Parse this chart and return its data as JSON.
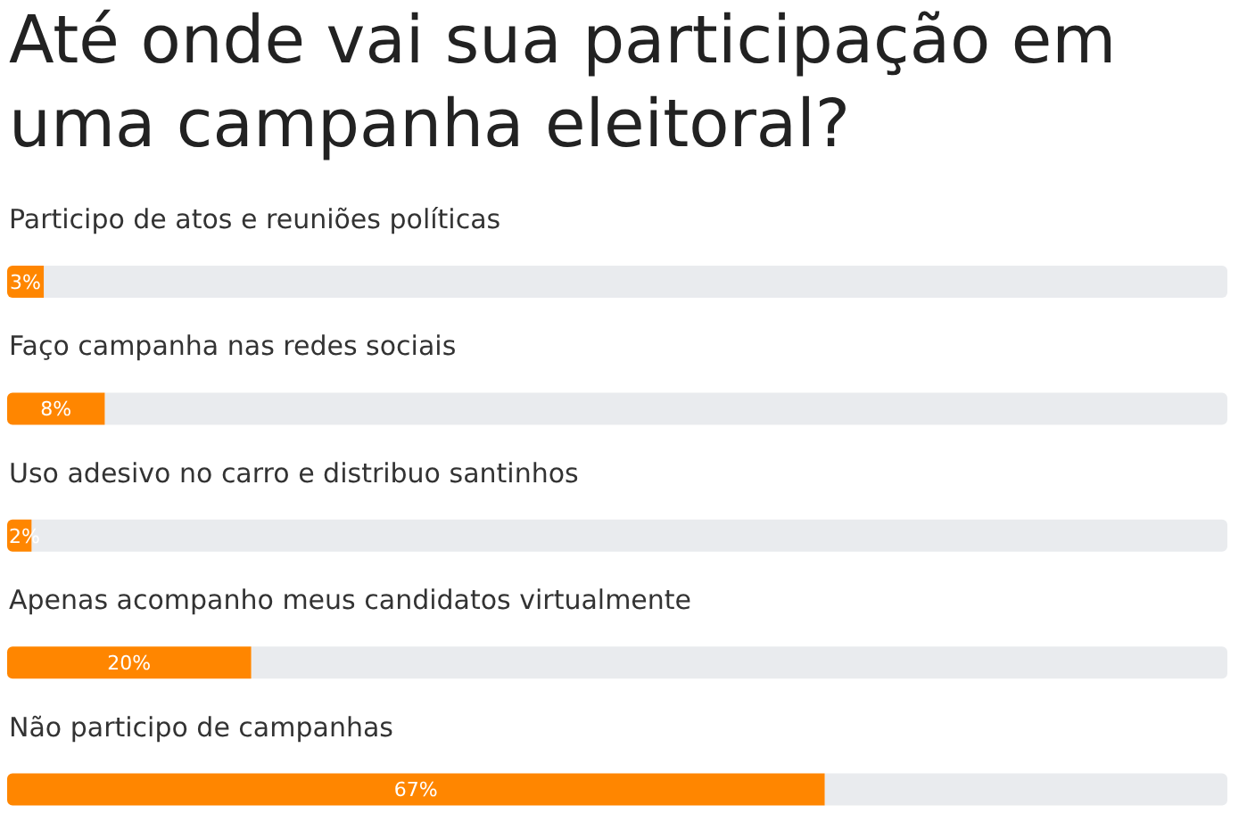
{
  "chart_data": {
    "type": "bar",
    "orientation": "horizontal",
    "title": "Até onde vai sua participação em uma campanha eleitoral?",
    "categories": [
      "Participo de atos e reuniões políticas",
      "Faço campanha nas redes sociais",
      "Uso adesivo no carro e distribuo santinhos",
      "Apenas acompanho meus candidatos virtualmente",
      "Não participo de campanhas"
    ],
    "values": [
      3,
      8,
      2,
      20,
      67
    ],
    "value_labels": [
      "3%",
      "8%",
      "2%",
      "20%",
      "67%"
    ],
    "color": "#ff8600",
    "xlim": [
      0,
      100
    ]
  }
}
